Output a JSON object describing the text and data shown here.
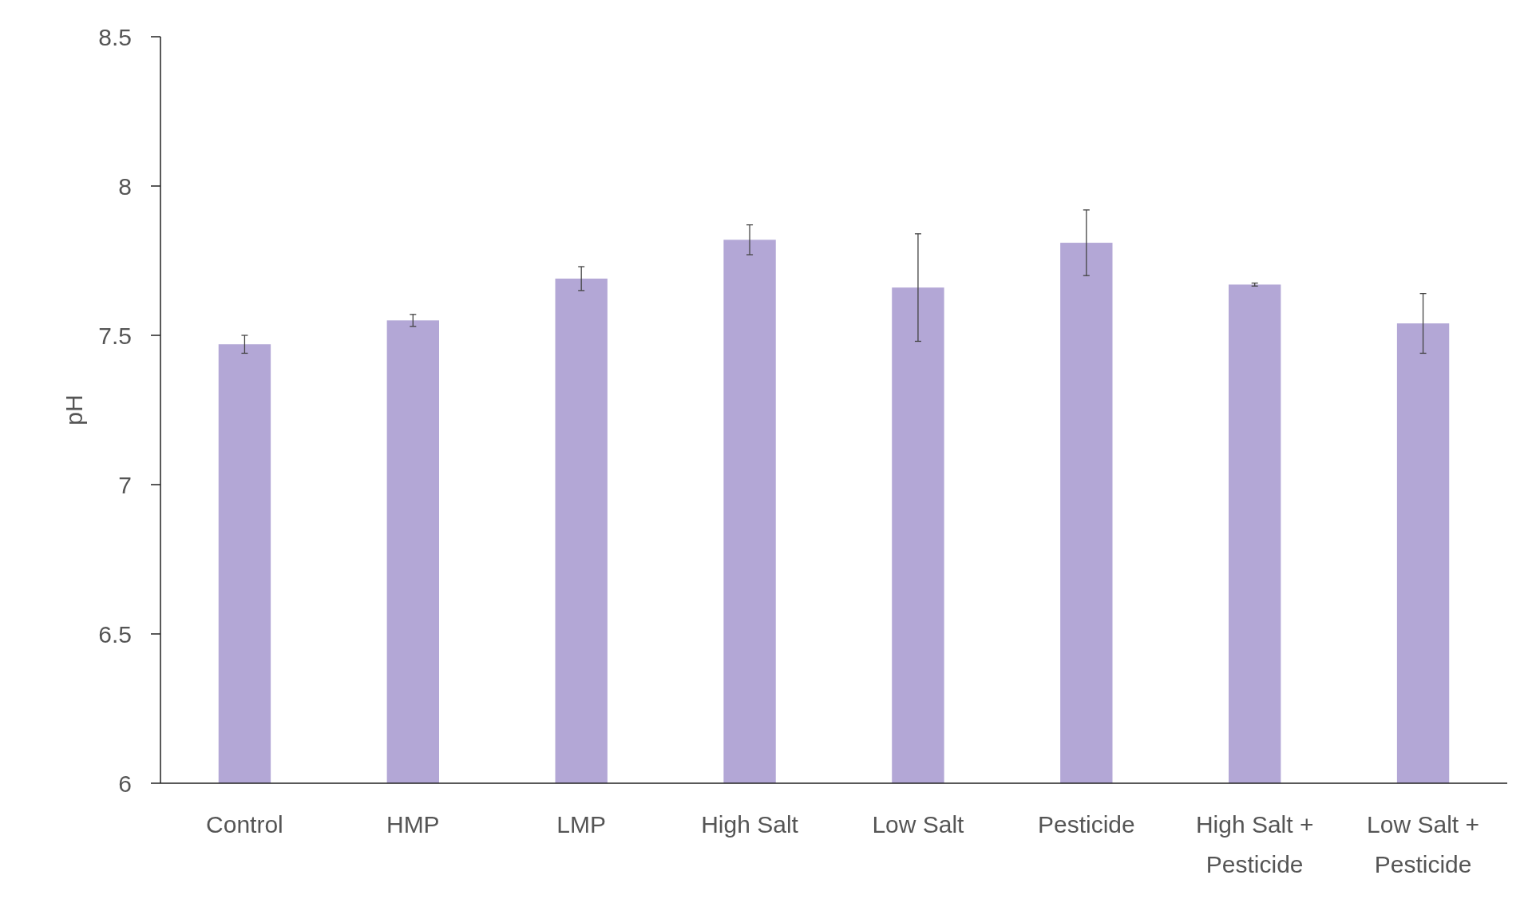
{
  "chart_data": {
    "type": "bar",
    "ylabel": "pH",
    "categories": [
      "Control",
      "HMP",
      "LMP",
      "High Salt",
      "Low Salt",
      "Pesticide",
      "High Salt + Pesticide",
      "Low Salt + Pesticide"
    ],
    "values": [
      7.47,
      7.55,
      7.69,
      7.82,
      7.66,
      7.81,
      7.67,
      7.54
    ],
    "errors": [
      0.03,
      0.02,
      0.04,
      0.05,
      0.18,
      0.11,
      0.005,
      0.1
    ],
    "color": "#b3a7d6",
    "ylim": [
      6,
      8.5
    ],
    "yticks": [
      6,
      6.5,
      7,
      7.5,
      8,
      8.5
    ],
    "grid": false
  }
}
